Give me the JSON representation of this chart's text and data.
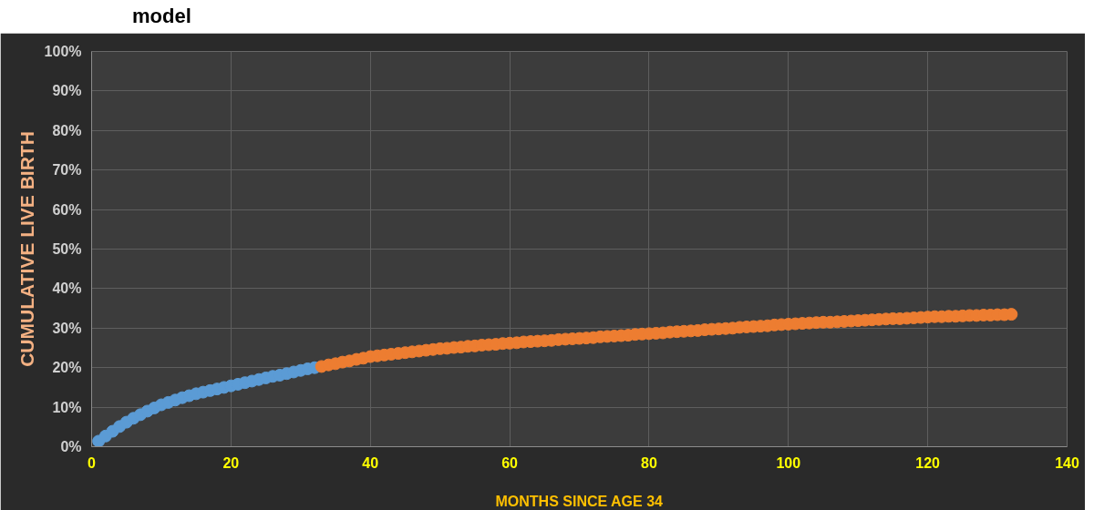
{
  "chart_data": {
    "type": "scatter",
    "title": "model",
    "xlabel": "MONTHS SINCE AGE 34",
    "ylabel": "CUMULATIVE LIVE BIRTH",
    "xlim": [
      0,
      140
    ],
    "xticks": [
      0,
      20,
      40,
      60,
      80,
      100,
      120,
      140
    ],
    "ylim": [
      0,
      100
    ],
    "yticks": [
      {
        "value": 0,
        "label": "0%"
      },
      {
        "value": 10,
        "label": "10%"
      },
      {
        "value": 20,
        "label": "20%"
      },
      {
        "value": 30,
        "label": "30%"
      },
      {
        "value": 40,
        "label": "40%"
      },
      {
        "value": 50,
        "label": "50%"
      },
      {
        "value": 60,
        "label": "60%"
      },
      {
        "value": 70,
        "label": "70%"
      },
      {
        "value": 80,
        "label": "80%"
      },
      {
        "value": 90,
        "label": "90%"
      },
      {
        "value": 100,
        "label": "100%"
      }
    ],
    "grid": true,
    "marker": "circle",
    "series": [
      {
        "color": "#5b9bd5",
        "x": [
          1,
          2,
          3,
          4,
          5,
          6,
          7,
          8,
          9,
          10,
          11,
          12,
          13,
          14,
          15,
          16,
          17,
          18,
          19,
          20,
          21,
          22,
          23,
          24,
          25,
          26,
          27,
          28,
          29,
          30,
          31,
          32
        ],
        "values": [
          1.4,
          2.7,
          3.9,
          5.1,
          6.2,
          7.2,
          8.1,
          9.0,
          9.8,
          10.6,
          11.2,
          11.8,
          12.4,
          12.9,
          13.4,
          13.8,
          14.2,
          14.6,
          15.0,
          15.4,
          15.8,
          16.2,
          16.6,
          17.0,
          17.4,
          17.8,
          18.1,
          18.5,
          18.9,
          19.3,
          19.7,
          20.0
        ]
      },
      {
        "color": "#ed7d31",
        "x": [
          33,
          34,
          35,
          36,
          37,
          38,
          39,
          40,
          41,
          42,
          43,
          44,
          45,
          46,
          47,
          48,
          49,
          50,
          51,
          52,
          53,
          54,
          55,
          56,
          57,
          58,
          59,
          60,
          61,
          62,
          63,
          64,
          65,
          66,
          67,
          68,
          69,
          70,
          71,
          72,
          73,
          74,
          75,
          76,
          77,
          78,
          79,
          80,
          81,
          82,
          83,
          84,
          85,
          86,
          87,
          88,
          89,
          90,
          91,
          92,
          93,
          94,
          95,
          96,
          97,
          98,
          99,
          100,
          101,
          102,
          103,
          104,
          105,
          106,
          107,
          108,
          109,
          110,
          111,
          112,
          113,
          114,
          115,
          116,
          117,
          118,
          119,
          120,
          121,
          122,
          123,
          124,
          125,
          126,
          127,
          128,
          129,
          130,
          131,
          132
        ],
        "values": [
          20.3,
          20.7,
          21.0,
          21.4,
          21.7,
          22.1,
          22.4,
          22.8,
          23.0,
          23.2,
          23.4,
          23.6,
          23.8,
          24.0,
          24.2,
          24.4,
          24.6,
          24.8,
          24.9,
          25.1,
          25.2,
          25.4,
          25.5,
          25.7,
          25.8,
          25.9,
          26.1,
          26.2,
          26.3,
          26.5,
          26.6,
          26.7,
          26.8,
          26.9,
          27.1,
          27.2,
          27.3,
          27.4,
          27.5,
          27.6,
          27.8,
          27.9,
          28.0,
          28.1,
          28.2,
          28.4,
          28.5,
          28.6,
          28.7,
          28.8,
          29.0,
          29.1,
          29.2,
          29.3,
          29.4,
          29.6,
          29.7,
          29.8,
          29.9,
          30.0,
          30.2,
          30.3,
          30.4,
          30.5,
          30.6,
          30.8,
          30.9,
          31.0,
          31.1,
          31.2,
          31.3,
          31.4,
          31.5,
          31.5,
          31.6,
          31.7,
          31.8,
          31.9,
          32.0,
          32.1,
          32.2,
          32.3,
          32.4,
          32.4,
          32.5,
          32.6,
          32.7,
          32.8,
          32.9,
          32.9,
          33.0,
          33.0,
          33.1,
          33.2,
          33.2,
          33.3,
          33.3,
          33.4,
          33.4,
          33.5
        ]
      }
    ]
  }
}
